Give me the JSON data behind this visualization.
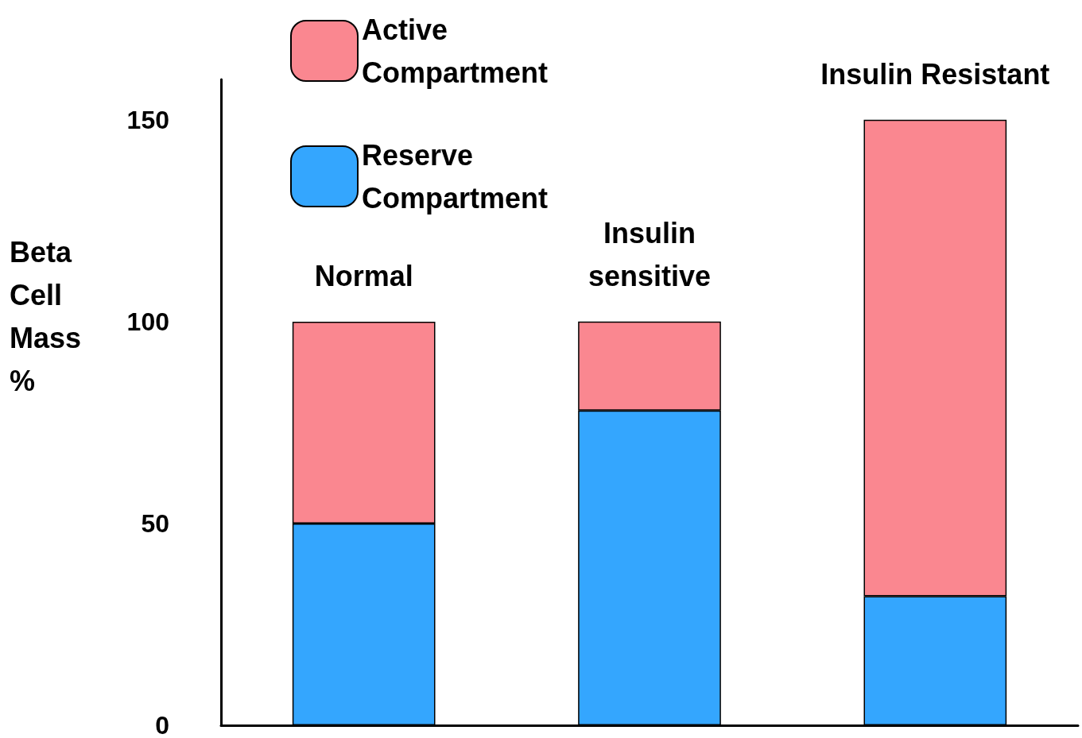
{
  "chart_data": {
    "type": "bar",
    "stacked": true,
    "ylabel": "Beta Cell Mass %",
    "categories": [
      "Normal",
      "Insulin sensitive",
      "Insulin Resistant"
    ],
    "series": [
      {
        "name": "Reserve Compartment",
        "color": "#34a6fe",
        "values": [
          50,
          78,
          32
        ]
      },
      {
        "name": "Active Compartment",
        "color": "#fa8790",
        "values": [
          50,
          22,
          118
        ]
      }
    ],
    "ylim": [
      0,
      160
    ],
    "yticks": [
      0,
      50,
      100,
      150
    ],
    "grid": false,
    "legend": "top left"
  }
}
